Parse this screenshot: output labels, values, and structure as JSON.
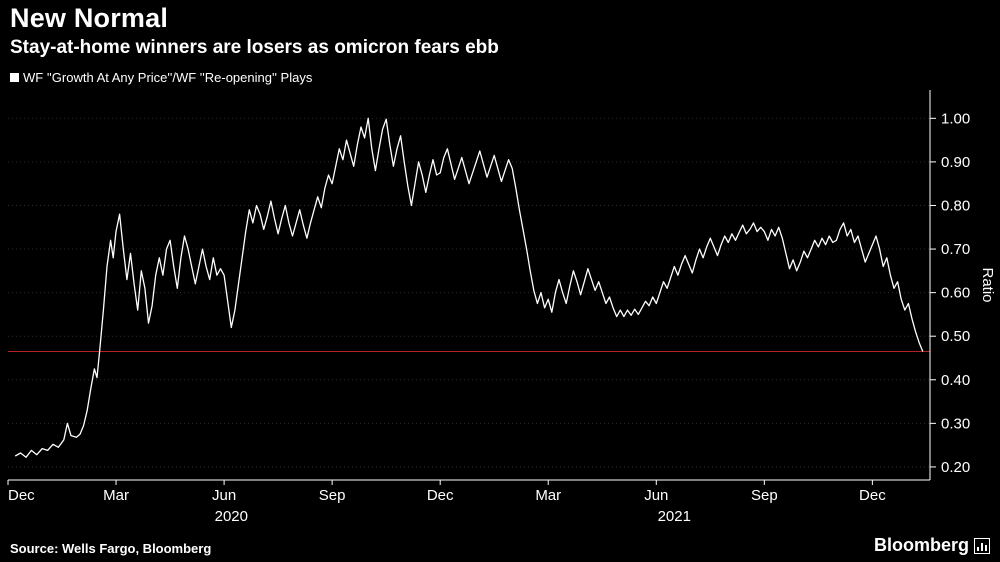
{
  "header": {
    "title": "New Normal",
    "subtitle": "Stay-at-home winners are losers as omicron fears ebb",
    "legend": "WF ''Growth At Any Price''/WF ''Re-opening'' Plays"
  },
  "footer": {
    "source": "Source: Wells Fargo, Bloomberg",
    "brand": "Bloomberg"
  },
  "colors": {
    "background": "#000000",
    "line": "#ffffff",
    "grid": "#2e2e2e",
    "threshold": "#b22222",
    "axis": "#ffffff",
    "text": "#ffffff"
  },
  "chart_data": {
    "type": "line",
    "title": "New Normal",
    "subtitle": "Stay-at-home winners are losers as omicron fears ebb",
    "series_name": "WF ''Growth At Any Price''/WF ''Re-opening'' Plays",
    "ylabel": "Ratio",
    "ylim": [
      0.17,
      1.065
    ],
    "y_ticks": [
      0.2,
      0.3,
      0.4,
      0.5,
      0.6,
      0.7,
      0.8,
      0.9,
      1.0
    ],
    "x_unit": "months since Dec 2019",
    "xlim": [
      0,
      25.6
    ],
    "x_ticks": [
      {
        "m": 0,
        "label": "Dec"
      },
      {
        "m": 3,
        "label": "Mar"
      },
      {
        "m": 6,
        "label": "Jun"
      },
      {
        "m": 9,
        "label": "Sep"
      },
      {
        "m": 12,
        "label": "Dec"
      },
      {
        "m": 15,
        "label": "Mar"
      },
      {
        "m": 18,
        "label": "Jun"
      },
      {
        "m": 21,
        "label": "Sep"
      },
      {
        "m": 24,
        "label": "Dec"
      }
    ],
    "year_labels": [
      {
        "m": 6.2,
        "label": "2020"
      },
      {
        "m": 18.5,
        "label": "2021"
      }
    ],
    "threshold_value": 0.465,
    "grid": "horizontal-dotted",
    "legend_position": "top-left",
    "points": [
      [
        0.2,
        0.225
      ],
      [
        0.35,
        0.232
      ],
      [
        0.5,
        0.222
      ],
      [
        0.65,
        0.238
      ],
      [
        0.8,
        0.228
      ],
      [
        0.95,
        0.242
      ],
      [
        1.1,
        0.238
      ],
      [
        1.25,
        0.252
      ],
      [
        1.4,
        0.245
      ],
      [
        1.55,
        0.262
      ],
      [
        1.65,
        0.3
      ],
      [
        1.75,
        0.272
      ],
      [
        1.9,
        0.268
      ],
      [
        2.0,
        0.275
      ],
      [
        2.1,
        0.295
      ],
      [
        2.2,
        0.33
      ],
      [
        2.3,
        0.38
      ],
      [
        2.4,
        0.425
      ],
      [
        2.47,
        0.405
      ],
      [
        2.55,
        0.47
      ],
      [
        2.65,
        0.56
      ],
      [
        2.75,
        0.66
      ],
      [
        2.85,
        0.72
      ],
      [
        2.92,
        0.68
      ],
      [
        3.0,
        0.74
      ],
      [
        3.1,
        0.78
      ],
      [
        3.2,
        0.7
      ],
      [
        3.3,
        0.63
      ],
      [
        3.4,
        0.69
      ],
      [
        3.5,
        0.62
      ],
      [
        3.6,
        0.56
      ],
      [
        3.7,
        0.65
      ],
      [
        3.8,
        0.61
      ],
      [
        3.9,
        0.53
      ],
      [
        4.0,
        0.57
      ],
      [
        4.1,
        0.64
      ],
      [
        4.2,
        0.68
      ],
      [
        4.3,
        0.64
      ],
      [
        4.4,
        0.7
      ],
      [
        4.5,
        0.72
      ],
      [
        4.6,
        0.66
      ],
      [
        4.7,
        0.61
      ],
      [
        4.8,
        0.68
      ],
      [
        4.9,
        0.73
      ],
      [
        5.0,
        0.7
      ],
      [
        5.1,
        0.66
      ],
      [
        5.2,
        0.62
      ],
      [
        5.3,
        0.66
      ],
      [
        5.4,
        0.7
      ],
      [
        5.5,
        0.66
      ],
      [
        5.6,
        0.63
      ],
      [
        5.7,
        0.68
      ],
      [
        5.8,
        0.64
      ],
      [
        5.9,
        0.655
      ],
      [
        6.0,
        0.64
      ],
      [
        6.1,
        0.58
      ],
      [
        6.2,
        0.52
      ],
      [
        6.3,
        0.56
      ],
      [
        6.4,
        0.62
      ],
      [
        6.5,
        0.68
      ],
      [
        6.6,
        0.74
      ],
      [
        6.7,
        0.79
      ],
      [
        6.8,
        0.76
      ],
      [
        6.9,
        0.8
      ],
      [
        7.0,
        0.78
      ],
      [
        7.1,
        0.745
      ],
      [
        7.2,
        0.775
      ],
      [
        7.3,
        0.81
      ],
      [
        7.4,
        0.77
      ],
      [
        7.5,
        0.735
      ],
      [
        7.6,
        0.77
      ],
      [
        7.7,
        0.8
      ],
      [
        7.8,
        0.76
      ],
      [
        7.9,
        0.73
      ],
      [
        8.0,
        0.76
      ],
      [
        8.1,
        0.79
      ],
      [
        8.2,
        0.755
      ],
      [
        8.3,
        0.725
      ],
      [
        8.4,
        0.76
      ],
      [
        8.5,
        0.79
      ],
      [
        8.6,
        0.82
      ],
      [
        8.7,
        0.795
      ],
      [
        8.8,
        0.84
      ],
      [
        8.9,
        0.87
      ],
      [
        9.0,
        0.85
      ],
      [
        9.1,
        0.89
      ],
      [
        9.2,
        0.93
      ],
      [
        9.3,
        0.905
      ],
      [
        9.4,
        0.95
      ],
      [
        9.5,
        0.92
      ],
      [
        9.6,
        0.89
      ],
      [
        9.7,
        0.94
      ],
      [
        9.8,
        0.98
      ],
      [
        9.9,
        0.955
      ],
      [
        10.0,
        1.0
      ],
      [
        10.1,
        0.93
      ],
      [
        10.2,
        0.88
      ],
      [
        10.3,
        0.93
      ],
      [
        10.4,
        0.975
      ],
      [
        10.5,
        0.998
      ],
      [
        10.6,
        0.94
      ],
      [
        10.7,
        0.89
      ],
      [
        10.8,
        0.93
      ],
      [
        10.9,
        0.96
      ],
      [
        11.0,
        0.9
      ],
      [
        11.1,
        0.845
      ],
      [
        11.2,
        0.8
      ],
      [
        11.3,
        0.85
      ],
      [
        11.4,
        0.9
      ],
      [
        11.5,
        0.87
      ],
      [
        11.6,
        0.83
      ],
      [
        11.7,
        0.87
      ],
      [
        11.8,
        0.905
      ],
      [
        11.9,
        0.87
      ],
      [
        12.0,
        0.875
      ],
      [
        12.1,
        0.91
      ],
      [
        12.2,
        0.93
      ],
      [
        12.3,
        0.895
      ],
      [
        12.4,
        0.86
      ],
      [
        12.5,
        0.885
      ],
      [
        12.6,
        0.91
      ],
      [
        12.7,
        0.88
      ],
      [
        12.8,
        0.85
      ],
      [
        12.9,
        0.875
      ],
      [
        13.0,
        0.9
      ],
      [
        13.1,
        0.925
      ],
      [
        13.2,
        0.895
      ],
      [
        13.3,
        0.865
      ],
      [
        13.4,
        0.89
      ],
      [
        13.5,
        0.915
      ],
      [
        13.6,
        0.885
      ],
      [
        13.7,
        0.855
      ],
      [
        13.8,
        0.88
      ],
      [
        13.9,
        0.905
      ],
      [
        14.0,
        0.885
      ],
      [
        14.1,
        0.84
      ],
      [
        14.2,
        0.79
      ],
      [
        14.3,
        0.745
      ],
      [
        14.4,
        0.7
      ],
      [
        14.5,
        0.65
      ],
      [
        14.6,
        0.605
      ],
      [
        14.7,
        0.575
      ],
      [
        14.8,
        0.6
      ],
      [
        14.9,
        0.565
      ],
      [
        15.0,
        0.585
      ],
      [
        15.1,
        0.555
      ],
      [
        15.2,
        0.6
      ],
      [
        15.3,
        0.63
      ],
      [
        15.4,
        0.6
      ],
      [
        15.5,
        0.575
      ],
      [
        15.6,
        0.615
      ],
      [
        15.7,
        0.65
      ],
      [
        15.8,
        0.625
      ],
      [
        15.9,
        0.595
      ],
      [
        16.0,
        0.625
      ],
      [
        16.1,
        0.655
      ],
      [
        16.2,
        0.63
      ],
      [
        16.3,
        0.605
      ],
      [
        16.4,
        0.625
      ],
      [
        16.5,
        0.6
      ],
      [
        16.6,
        0.575
      ],
      [
        16.7,
        0.59
      ],
      [
        16.8,
        0.565
      ],
      [
        16.9,
        0.545
      ],
      [
        17.0,
        0.56
      ],
      [
        17.1,
        0.545
      ],
      [
        17.2,
        0.56
      ],
      [
        17.3,
        0.548
      ],
      [
        17.4,
        0.562
      ],
      [
        17.5,
        0.55
      ],
      [
        17.6,
        0.565
      ],
      [
        17.7,
        0.58
      ],
      [
        17.8,
        0.57
      ],
      [
        17.9,
        0.59
      ],
      [
        18.0,
        0.575
      ],
      [
        18.1,
        0.6
      ],
      [
        18.2,
        0.625
      ],
      [
        18.3,
        0.61
      ],
      [
        18.4,
        0.635
      ],
      [
        18.5,
        0.66
      ],
      [
        18.6,
        0.64
      ],
      [
        18.7,
        0.665
      ],
      [
        18.8,
        0.685
      ],
      [
        18.9,
        0.665
      ],
      [
        19.0,
        0.645
      ],
      [
        19.1,
        0.675
      ],
      [
        19.2,
        0.7
      ],
      [
        19.3,
        0.68
      ],
      [
        19.4,
        0.705
      ],
      [
        19.5,
        0.725
      ],
      [
        19.6,
        0.705
      ],
      [
        19.7,
        0.685
      ],
      [
        19.8,
        0.71
      ],
      [
        19.9,
        0.73
      ],
      [
        20.0,
        0.715
      ],
      [
        20.1,
        0.735
      ],
      [
        20.2,
        0.72
      ],
      [
        20.3,
        0.738
      ],
      [
        20.4,
        0.755
      ],
      [
        20.5,
        0.735
      ],
      [
        20.6,
        0.745
      ],
      [
        20.7,
        0.76
      ],
      [
        20.8,
        0.74
      ],
      [
        20.9,
        0.75
      ],
      [
        21.0,
        0.74
      ],
      [
        21.1,
        0.72
      ],
      [
        21.2,
        0.745
      ],
      [
        21.3,
        0.73
      ],
      [
        21.4,
        0.75
      ],
      [
        21.5,
        0.725
      ],
      [
        21.6,
        0.69
      ],
      [
        21.7,
        0.655
      ],
      [
        21.8,
        0.675
      ],
      [
        21.9,
        0.65
      ],
      [
        22.0,
        0.67
      ],
      [
        22.1,
        0.695
      ],
      [
        22.2,
        0.68
      ],
      [
        22.3,
        0.7
      ],
      [
        22.4,
        0.72
      ],
      [
        22.5,
        0.705
      ],
      [
        22.6,
        0.725
      ],
      [
        22.7,
        0.71
      ],
      [
        22.8,
        0.73
      ],
      [
        22.9,
        0.715
      ],
      [
        23.0,
        0.72
      ],
      [
        23.1,
        0.745
      ],
      [
        23.2,
        0.76
      ],
      [
        23.3,
        0.73
      ],
      [
        23.4,
        0.745
      ],
      [
        23.5,
        0.715
      ],
      [
        23.6,
        0.73
      ],
      [
        23.7,
        0.7
      ],
      [
        23.8,
        0.67
      ],
      [
        23.9,
        0.69
      ],
      [
        24.0,
        0.71
      ],
      [
        24.1,
        0.73
      ],
      [
        24.2,
        0.7
      ],
      [
        24.3,
        0.66
      ],
      [
        24.4,
        0.68
      ],
      [
        24.5,
        0.64
      ],
      [
        24.6,
        0.61
      ],
      [
        24.7,
        0.625
      ],
      [
        24.8,
        0.585
      ],
      [
        24.9,
        0.56
      ],
      [
        25.0,
        0.575
      ],
      [
        25.1,
        0.54
      ],
      [
        25.2,
        0.51
      ],
      [
        25.3,
        0.485
      ],
      [
        25.4,
        0.465
      ]
    ]
  }
}
